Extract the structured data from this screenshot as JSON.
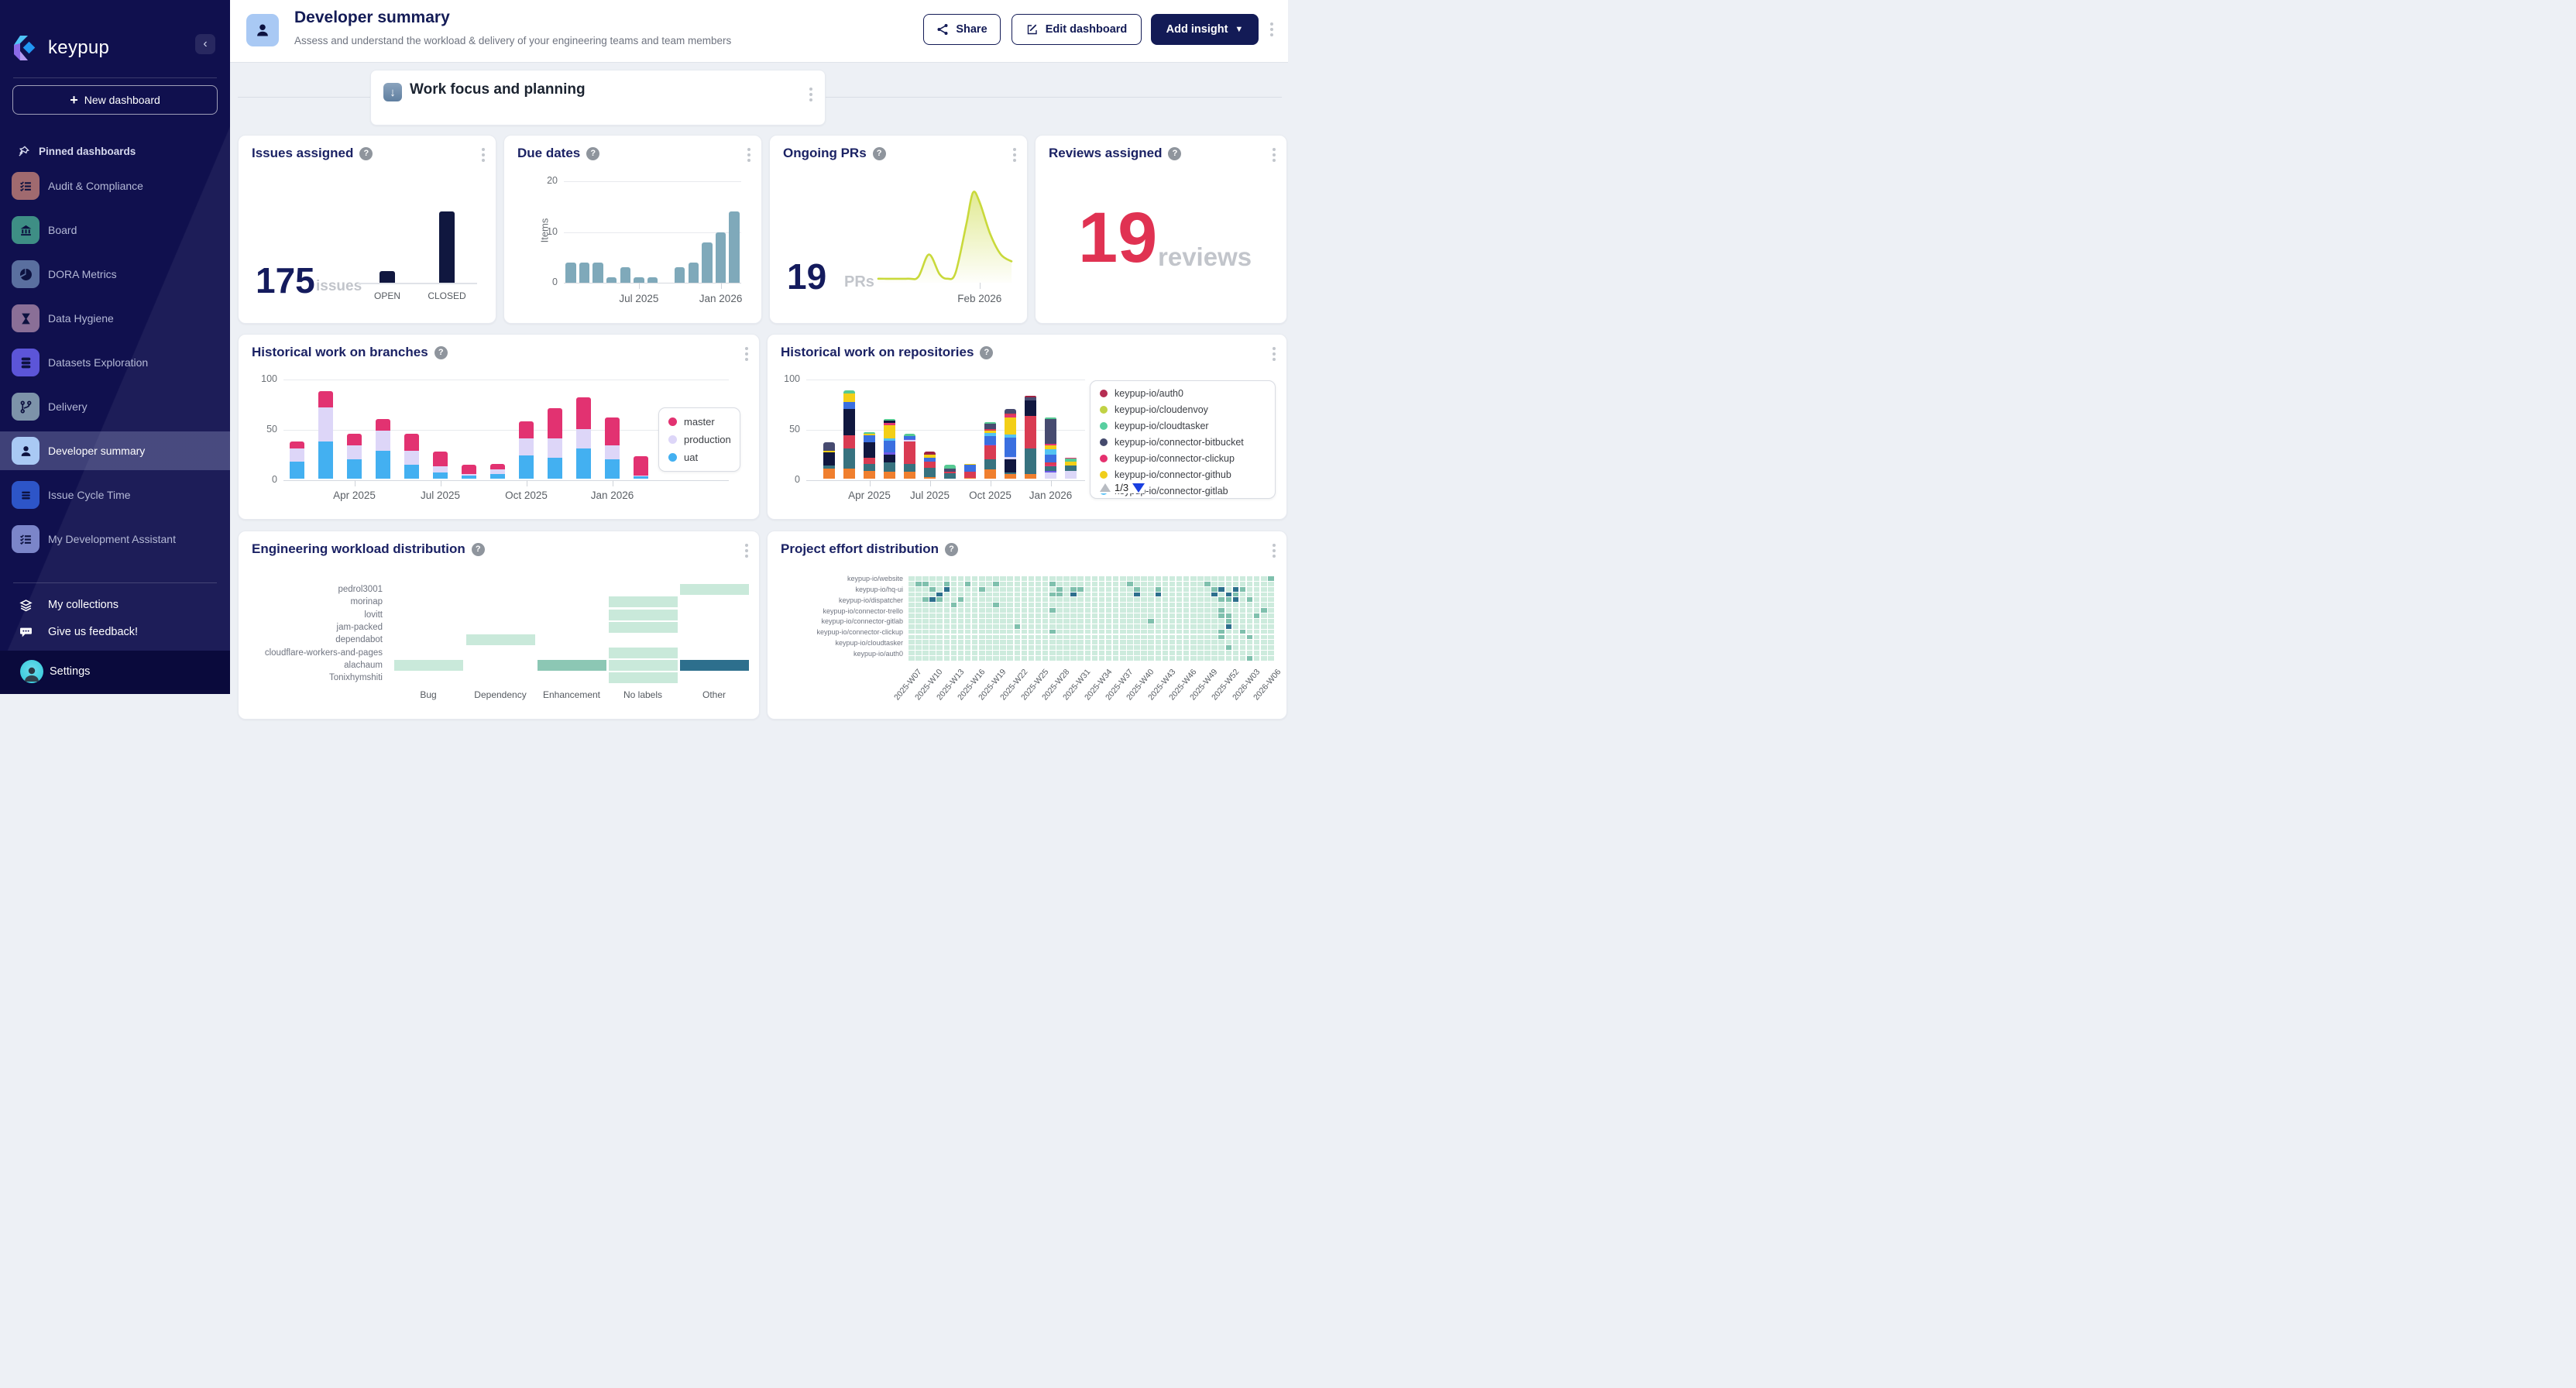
{
  "app": {
    "brand": "keypup"
  },
  "sidebar": {
    "new_dashboard": "New dashboard",
    "pinned_header": "Pinned dashboards",
    "items": [
      {
        "label": "Audit & Compliance",
        "color": "#a06a6f",
        "icon": "checklist",
        "selected": false
      },
      {
        "label": "Board",
        "color": "#3e8e85",
        "icon": "bank",
        "selected": false
      },
      {
        "label": "DORA Metrics",
        "color": "#5a6f9f",
        "icon": "pie",
        "selected": false
      },
      {
        "label": "Data Hygiene",
        "color": "#8a6f97",
        "icon": "hourglass",
        "selected": false
      },
      {
        "label": "Datasets Exploration",
        "color": "#5c55d8",
        "icon": "database",
        "selected": false
      },
      {
        "label": "Delivery",
        "color": "#7d93a9",
        "icon": "branch",
        "selected": false
      },
      {
        "label": "Developer summary",
        "color": "#a9c9f4",
        "icon": "person",
        "selected": true
      },
      {
        "label": "Issue Cycle Time",
        "color": "#2d55c8",
        "icon": "bars",
        "selected": false
      },
      {
        "label": "My Development Assistant",
        "color": "#7b85c9",
        "icon": "checklist",
        "selected": false
      }
    ],
    "collections": "My collections",
    "feedback": "Give us feedback!",
    "settings": "Settings"
  },
  "header": {
    "title": "Developer summary",
    "subtitle": "Assess and understand the workload & delivery of your engineering teams and team members",
    "share": "Share",
    "edit": "Edit dashboard",
    "add_insight": "Add insight"
  },
  "banner": {
    "emoji": "↓",
    "title": "Work focus and planning"
  },
  "issues": {
    "title": "Issues assigned",
    "value": "175",
    "unit": "issues",
    "chart": {
      "type": "bar",
      "categories": [
        "OPEN",
        "CLOSED"
      ],
      "values": [
        25,
        150
      ],
      "color": "#10173f",
      "ymax": 160
    }
  },
  "due": {
    "title": "Due dates",
    "ylabel": "Items",
    "chart": {
      "type": "bar",
      "categories": [
        "Feb 2025",
        "Mar 2025",
        "Apr 2025",
        "May 2025",
        "Jun 2025",
        "Jul 2025",
        "Aug 2025",
        "Sep 2025",
        "Oct 2025",
        "Nov 2025",
        "Dec 2025",
        "Jan 2026",
        "Feb 2026"
      ],
      "values": [
        4,
        4,
        4,
        1,
        3,
        1,
        1,
        0,
        3,
        4,
        8,
        10,
        14
      ],
      "yticks": [
        0,
        10,
        20
      ],
      "ymax": 20,
      "xticks": [
        {
          "label": "Jul 2025",
          "slot": 5
        },
        {
          "label": "Jan 2026",
          "slot": 11
        }
      ],
      "color": "#7fa9ba"
    }
  },
  "prs": {
    "title": "Ongoing PRs",
    "value": "19",
    "unit": "PRs",
    "chart": {
      "type": "area",
      "color": "#c9d93b",
      "ymax": 20,
      "xtick": "Feb 2026",
      "xtick_pos": 0.76,
      "points": [
        [
          0,
          0.2
        ],
        [
          0.22,
          0.2
        ],
        [
          0.3,
          0.6
        ],
        [
          0.38,
          5.5
        ],
        [
          0.46,
          1.2
        ],
        [
          0.52,
          0.2
        ],
        [
          0.58,
          1.5
        ],
        [
          0.66,
          12
        ],
        [
          0.71,
          19
        ],
        [
          0.76,
          17
        ],
        [
          0.84,
          10
        ],
        [
          0.92,
          5.5
        ],
        [
          1,
          4
        ]
      ]
    }
  },
  "reviews": {
    "title": "Reviews assigned",
    "value": "19",
    "unit": "reviews",
    "color": "#e03252"
  },
  "branches": {
    "title": "Historical work on branches",
    "chart": {
      "type": "stacked-bar",
      "categories": [
        "Feb 2025",
        "Mar 2025",
        "Apr 2025",
        "May 2025",
        "Jun 2025",
        "Jul 2025",
        "Aug 2025",
        "Sep 2025",
        "Oct 2025",
        "Nov 2025",
        "Dec 2025",
        "Jan 2026",
        "Feb 2026"
      ],
      "yticks": [
        0,
        50,
        100
      ],
      "ymax": 100,
      "xticks": [
        {
          "label": "Apr 2025",
          "slot": 2
        },
        {
          "label": "Jul 2025",
          "slot": 5
        },
        {
          "label": "Oct 2025",
          "slot": 8
        },
        {
          "label": "Jan 2026",
          "slot": 11
        }
      ],
      "series": [
        {
          "name": "uat",
          "color": "#43b0f1",
          "values": [
            17,
            37,
            19,
            28,
            14,
            6,
            3,
            5,
            23,
            21,
            30,
            19,
            2
          ]
        },
        {
          "name": "production",
          "color": "#ddd6f8",
          "values": [
            13,
            34,
            14,
            20,
            14,
            6,
            2,
            4,
            17,
            19,
            19,
            14,
            1
          ]
        },
        {
          "name": "master",
          "color": "#e23271",
          "values": [
            7,
            16,
            12,
            11,
            17,
            15,
            9,
            6,
            17,
            30,
            32,
            28,
            19
          ]
        }
      ],
      "legend": [
        {
          "label": "master",
          "color": "#e23271"
        },
        {
          "label": "production",
          "color": "#ddd6f8"
        },
        {
          "label": "uat",
          "color": "#43b0f1"
        }
      ]
    }
  },
  "repos": {
    "title": "Historical work on repositories",
    "chart": {
      "type": "stacked-bar",
      "yticks": [
        0,
        50,
        100
      ],
      "ymax": 100,
      "xticks": [
        {
          "label": "Apr 2025",
          "slot": 2
        },
        {
          "label": "Jul 2025",
          "slot": 5
        },
        {
          "label": "Oct 2025",
          "slot": 8
        },
        {
          "label": "Jan 2026",
          "slot": 11
        }
      ],
      "palette": {
        "orange": "#f07f2e",
        "teal": "#37727f",
        "crimson": "#d93b52",
        "navy": "#10173f",
        "slate": "#474b70",
        "blue": "#3a6fe0",
        "lightblue": "#53c3f2",
        "yellow": "#f3cf17",
        "green": "#56c993",
        "pink": "#e43672",
        "lavender": "#dcd7f8",
        "violet": "#6d5ae6",
        "darkred": "#9e2242"
      },
      "bars": [
        [
          [
            "orange",
            10
          ],
          [
            "teal",
            3
          ],
          [
            "navy",
            13
          ],
          [
            "yellow",
            2
          ],
          [
            "slate",
            8
          ]
        ],
        [
          [
            "orange",
            10
          ],
          [
            "teal",
            20
          ],
          [
            "crimson",
            13
          ],
          [
            "navy",
            26
          ],
          [
            "blue",
            7
          ],
          [
            "yellow",
            9
          ],
          [
            "green",
            3
          ]
        ],
        [
          [
            "orange",
            8
          ],
          [
            "teal",
            7
          ],
          [
            "crimson",
            6
          ],
          [
            "navy",
            15
          ],
          [
            "blue",
            7
          ],
          [
            "yellow",
            1.5
          ],
          [
            "green",
            1.5
          ]
        ],
        [
          [
            "orange",
            7
          ],
          [
            "teal",
            9
          ],
          [
            "navy",
            8
          ],
          [
            "violet",
            2
          ],
          [
            "blue",
            12
          ],
          [
            "lightblue",
            2
          ],
          [
            "yellow",
            13
          ],
          [
            "pink",
            2.5
          ],
          [
            "navy",
            2
          ],
          [
            "green",
            2
          ]
        ],
        [
          [
            "orange",
            7
          ],
          [
            "teal",
            8
          ],
          [
            "crimson",
            22
          ],
          [
            "lavender",
            1.5
          ],
          [
            "violet",
            1
          ],
          [
            "blue",
            3
          ],
          [
            "green",
            2.5
          ]
        ],
        [
          [
            "orange",
            1.5
          ],
          [
            "teal",
            9
          ],
          [
            "crimson",
            6.5
          ],
          [
            "blue",
            4
          ],
          [
            "yellow",
            2.5
          ],
          [
            "darkred",
            3.5
          ]
        ],
        [
          [
            "teal",
            5.5
          ],
          [
            "crimson",
            1.5
          ],
          [
            "slate",
            3
          ],
          [
            "green",
            3.5
          ]
        ],
        [
          [
            "orange",
            1
          ],
          [
            "crimson",
            6
          ],
          [
            "blue",
            6.5
          ],
          [
            "yellow",
            1.5
          ]
        ],
        [
          [
            "orange",
            9
          ],
          [
            "teal",
            10
          ],
          [
            "crimson",
            14
          ],
          [
            "violet",
            1
          ],
          [
            "blue",
            8
          ],
          [
            "lightblue",
            3.5
          ],
          [
            "yellow",
            2.5
          ],
          [
            "crimson",
            1.5
          ],
          [
            "slate",
            5
          ],
          [
            "green",
            2
          ]
        ],
        [
          [
            "orange",
            5
          ],
          [
            "teal",
            1.5
          ],
          [
            "navy",
            13
          ],
          [
            "lavender",
            2
          ],
          [
            "blue",
            19
          ],
          [
            "lightblue",
            3
          ],
          [
            "yellow",
            17
          ],
          [
            "pink",
            2.5
          ],
          [
            "crimson",
            1.5
          ],
          [
            "slate",
            4.5
          ]
        ],
        [
          [
            "orange",
            5
          ],
          [
            "teal",
            25
          ],
          [
            "crimson",
            32
          ],
          [
            "navy",
            16
          ],
          [
            "slate",
            3
          ],
          [
            "darkred",
            1
          ]
        ],
        [
          [
            "lavender",
            6
          ],
          [
            "violet",
            2
          ],
          [
            "teal",
            4
          ],
          [
            "pink",
            2
          ],
          [
            "crimson",
            2
          ],
          [
            "blue",
            8
          ],
          [
            "lightblue",
            5
          ],
          [
            "yellow",
            4
          ],
          [
            "pink",
            2
          ],
          [
            "slate",
            24
          ],
          [
            "green",
            2
          ]
        ],
        [
          [
            "lavender",
            8
          ],
          [
            "teal",
            5
          ],
          [
            "yellow",
            4
          ],
          [
            "green",
            3
          ],
          [
            "pink",
            1
          ]
        ]
      ],
      "legend": [
        {
          "label": "keypup-io/auth0",
          "color": "#b52d52"
        },
        {
          "label": "keypup-io/cloudenvoy",
          "color": "#c1d244"
        },
        {
          "label": "keypup-io/cloudtasker",
          "color": "#58cfa0"
        },
        {
          "label": "keypup-io/connector-bitbucket",
          "color": "#454a6d"
        },
        {
          "label": "keypup-io/connector-clickup",
          "color": "#e5316f"
        },
        {
          "label": "keypup-io/connector-github",
          "color": "#f0ce1b"
        },
        {
          "label": "keypup-io/connector-gitlab",
          "color": "#58c0f5"
        }
      ],
      "pagination": "1/3"
    }
  },
  "workload": {
    "title": "Engineering workload distribution",
    "chart": {
      "type": "heatmap",
      "rows": [
        "pedrol3001",
        "morinap",
        "lovitt",
        "jam-packed",
        "dependabot",
        "cloudflare-workers-and-pages",
        "alachaum",
        "Tonixhymshiti"
      ],
      "cols": [
        "Bug",
        "Dependency",
        "Enhancement",
        "No labels",
        "Other"
      ],
      "grid": [
        "00001",
        "00010",
        "00010",
        "00010",
        "01000",
        "00010",
        "10213",
        "00010"
      ],
      "colors": {
        "1": "#c9e9da",
        "2": "#8cc7b4",
        "3": "#2d6f8d"
      }
    }
  },
  "project": {
    "title": "Project effort distribution",
    "chart": {
      "type": "heatmap",
      "row_labels": [
        "keypup-io/website",
        "keypup-io/hq-ui",
        "keypup-io/dispatcher",
        "keypup-io/connector-trello",
        "keypup-io/connector-gitlab",
        "keypup-io/connector-clickup",
        "keypup-io/cloudtasker",
        "keypup-io/auth0"
      ],
      "xticks": [
        "2025-W07",
        "2025-W10",
        "2025-W13",
        "2025-W16",
        "2025-W19",
        "2025-W22",
        "2025-W25",
        "2025-W28",
        "2025-W31",
        "2025-W34",
        "2025-W37",
        "2025-W40",
        "2025-W43",
        "2025-W46",
        "2025-W49",
        "2025-W52",
        "2026-W03",
        "2026-W06"
      ],
      "n_cols": 52,
      "grid": [
        "1111111111111111111111111111111111111111111111111112",
        "1221121121112111111121111111111211111111112111111111",
        "1112131111211111111112122111111121121111111231321111",
        "1111311111111111111122131111111131131111111313211111",
        "1123211211111111111111111111111111111111111122312111",
        "1111112111112111111111111111111111111111111111111111",
        "1111111111111111111121111111111111111111111121111121",
        "1111111111111111111111111111111111111111111122111211",
        "1111111111111111111111111111111111211111111112111111",
        "1111111111111112111111111111111111111111111113111111",
        "1111111111111111111121111111111111111111111121121111",
        "1111111111111111111111111111111111111111111121112111",
        "1111111111111111111111111111111111111111111111111111",
        "1111111111111111111111111111111111111111111112111111",
        "1111111111111111111111111111111111111111111111111111",
        "1111111111111111111111111111111111111111111111112111"
      ],
      "colors": {
        "1": "#cdebdd",
        "2": "#7fc0ad",
        "3": "#2d6f8d"
      }
    }
  }
}
